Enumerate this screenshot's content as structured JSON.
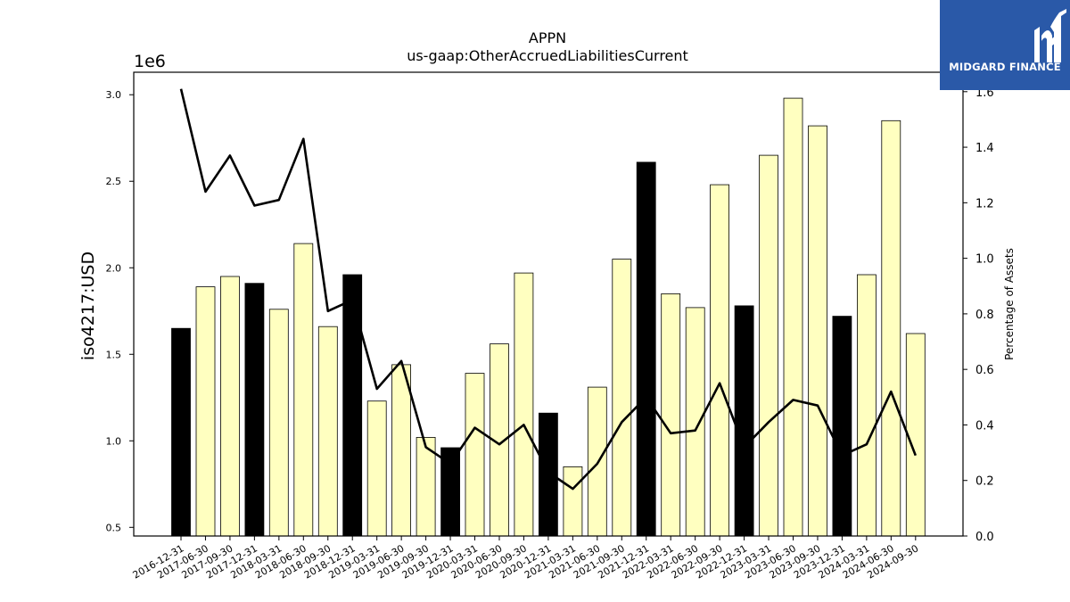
{
  "chart_data": {
    "type": "bar",
    "title": "APPN",
    "subtitle": "us-gaap:OtherAccruedLiabilitiesCurrent",
    "ylabel": "iso4217:USD",
    "y_multiplier": "1e6",
    "y2label": "Percentage of Assets",
    "ylim": [
      0.45,
      3.13
    ],
    "y2lim": [
      0.0,
      1.67
    ],
    "yticks": [
      "0.5",
      "1.0",
      "1.5",
      "2.0",
      "2.5",
      "3.0"
    ],
    "y2ticks": [
      "0.0",
      "0.2",
      "0.4",
      "0.6",
      "0.8",
      "1.0",
      "1.2",
      "1.4",
      "1.6"
    ],
    "categories": [
      "2016-12-31",
      "2017-06-30",
      "2017-09-30",
      "2017-12-31",
      "2018-03-31",
      "2018-06-30",
      "2018-09-30",
      "2018-12-31",
      "2019-03-31",
      "2019-06-30",
      "2019-09-30",
      "2019-12-31",
      "2020-03-31",
      "2020-06-30",
      "2020-09-30",
      "2020-12-31",
      "2021-03-31",
      "2021-06-30",
      "2021-09-30",
      "2021-12-31",
      "2022-03-31",
      "2022-06-30",
      "2022-09-30",
      "2022-12-31",
      "2023-03-31",
      "2023-06-30",
      "2023-09-30",
      "2023-12-31",
      "2024-03-31",
      "2024-06-30",
      "2024-09-30"
    ],
    "series": [
      {
        "values": [
          1.65,
          1.89,
          1.95,
          1.91,
          1.76,
          2.14,
          1.66,
          1.96,
          1.23,
          1.44,
          1.02,
          0.96,
          1.39,
          1.56,
          1.97,
          1.16,
          0.85,
          1.31,
          2.05,
          2.61,
          1.85,
          1.77,
          2.48,
          1.78,
          2.65,
          2.98,
          2.82,
          1.72,
          1.96,
          2.85,
          1.62
        ],
        "annual": [
          true,
          false,
          false,
          true,
          false,
          false,
          false,
          true,
          false,
          false,
          false,
          true,
          false,
          false,
          false,
          true,
          false,
          false,
          false,
          true,
          false,
          false,
          false,
          true,
          false,
          false,
          false,
          true,
          false,
          false,
          false
        ]
      },
      {
        "axis": "right",
        "values": [
          1.61,
          1.24,
          1.37,
          1.19,
          1.21,
          1.43,
          0.81,
          0.85,
          0.53,
          0.63,
          0.32,
          0.26,
          0.39,
          0.33,
          0.4,
          0.23,
          0.17,
          0.26,
          0.41,
          0.5,
          0.37,
          0.38,
          0.55,
          0.32,
          0.41,
          0.49,
          0.47,
          0.29,
          0.33,
          0.52,
          0.29
        ]
      }
    ],
    "bar_colors": {
      "annual": "#000000",
      "quarterly": "#ffffc0"
    },
    "line_color": "#000000"
  },
  "logo": {
    "text": "MIDGARD FINANCE",
    "color": "#2a59a8"
  }
}
